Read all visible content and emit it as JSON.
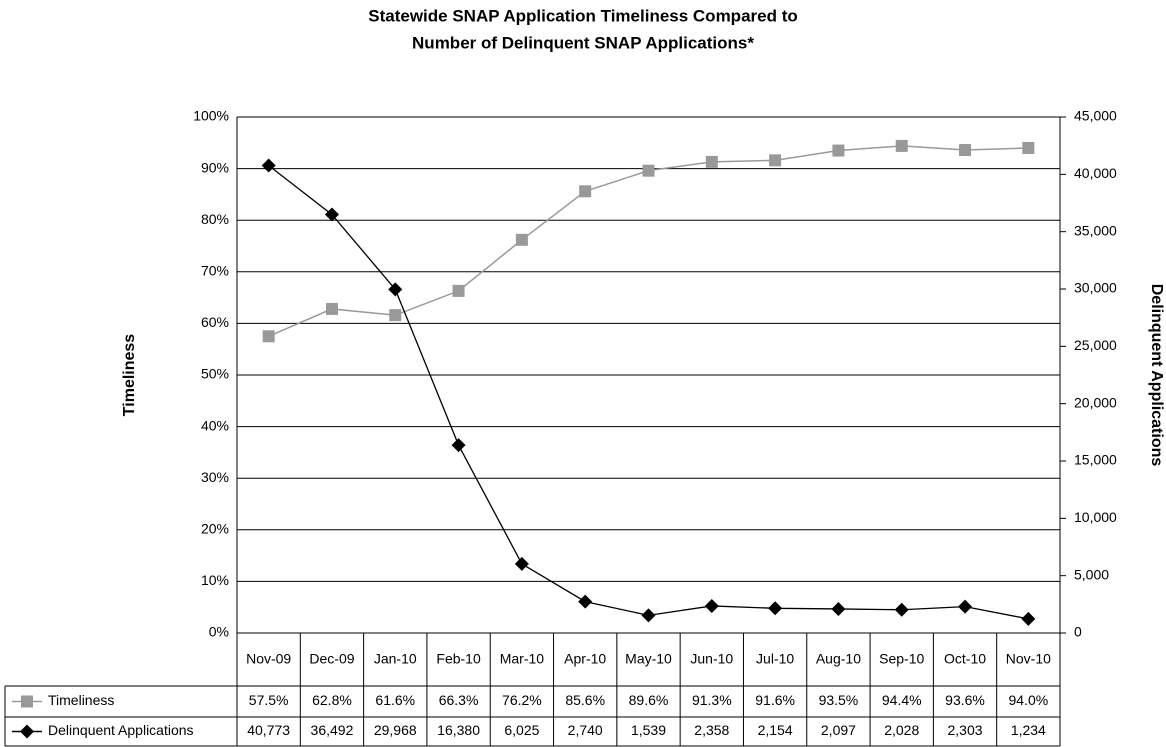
{
  "chart_data": {
    "type": "line",
    "title": [
      "Statewide SNAP Application Timeliness Compared to",
      "Number of Delinquent SNAP Applications*"
    ],
    "ylabel": "Timeliness",
    "y2label": "Delinquent Applications",
    "categories": [
      "Nov-09",
      "Dec-09",
      "Jan-10",
      "Feb-10",
      "Mar-10",
      "Apr-10",
      "May-10",
      "Jun-10",
      "Jul-10",
      "Aug-10",
      "Sep-10",
      "Oct-10",
      "Nov-10"
    ],
    "series": [
      {
        "name": "Timeliness",
        "color": "#999999",
        "marker": "square",
        "values": [
          57.5,
          62.8,
          61.6,
          66.3,
          76.2,
          85.6,
          89.6,
          91.3,
          91.6,
          93.5,
          94.4,
          93.6,
          94.0
        ],
        "value_labels": [
          "57.5%",
          "62.8%",
          "61.6%",
          "66.3%",
          "76.2%",
          "85.6%",
          "89.6%",
          "91.3%",
          "91.6%",
          "93.5%",
          "94.4%",
          "93.6%",
          "94.0%"
        ]
      },
      {
        "name": "Delinquent Applications",
        "color": "#000000",
        "marker": "diamond",
        "axis": "y2",
        "values": [
          40773,
          36492,
          29968,
          16380,
          6025,
          2740,
          1539,
          2358,
          2154,
          2097,
          2028,
          2303,
          1234
        ],
        "value_labels": [
          "40,773",
          "36,492",
          "29,968",
          "16,380",
          "6,025",
          "2,740",
          "1,539",
          "2,358",
          "2,154",
          "2,097",
          "2,028",
          "2,303",
          "1,234"
        ]
      }
    ],
    "ylim": [
      0,
      100
    ],
    "yticks": [
      {
        "value": 0,
        "label": "0%"
      },
      {
        "value": 10,
        "label": "10%"
      },
      {
        "value": 20,
        "label": "20%"
      },
      {
        "value": 30,
        "label": "30%"
      },
      {
        "value": 40,
        "label": "40%"
      },
      {
        "value": 50,
        "label": "50%"
      },
      {
        "value": 60,
        "label": "60%"
      },
      {
        "value": 70,
        "label": "70%"
      },
      {
        "value": 80,
        "label": "80%"
      },
      {
        "value": 90,
        "label": "90%"
      },
      {
        "value": 100,
        "label": "100%"
      }
    ],
    "y2lim": [
      0,
      45000
    ],
    "y2ticks": [
      0,
      {
        "value": 5000,
        "label": "5,000"
      },
      {
        "value": 10000,
        "label": "10,000"
      },
      {
        "value": 15000,
        "label": "15,000"
      },
      {
        "value": 20000,
        "label": "20,000"
      },
      {
        "value": 25000,
        "label": "25,000"
      },
      {
        "value": 30000,
        "label": "30,000"
      },
      {
        "value": 35000,
        "label": "35,000"
      },
      {
        "value": 40000,
        "label": "40,000"
      },
      {
        "value": 45000,
        "label": "45,000"
      }
    ],
    "grid": true
  }
}
